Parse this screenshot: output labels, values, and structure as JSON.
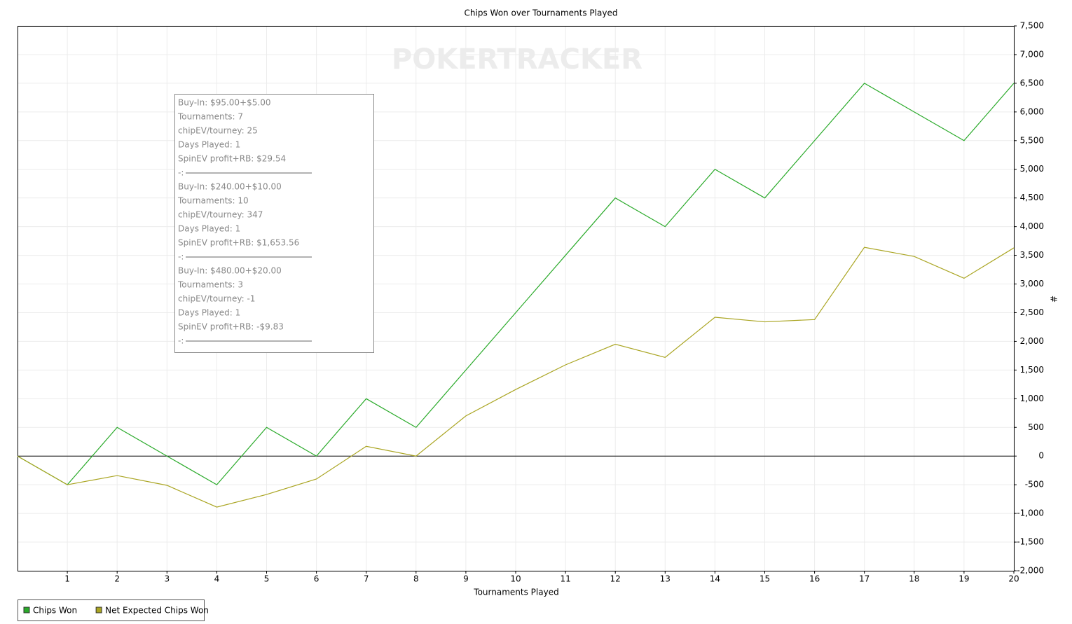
{
  "chart_data": {
    "type": "line",
    "title": "Chips Won over Tournaments Played",
    "x_label": "Tournaments Played",
    "y_label": "#",
    "watermark": "POKERTRACKER",
    "x": [
      0,
      1,
      2,
      3,
      4,
      5,
      6,
      7,
      8,
      9,
      10,
      11,
      12,
      13,
      14,
      15,
      16,
      17,
      18,
      19,
      20
    ],
    "series": [
      {
        "name": "Chips Won",
        "color": "#2aaa2a",
        "values": [
          0,
          -500,
          500,
          0,
          -500,
          500,
          0,
          1000,
          500,
          1500,
          2500,
          3500,
          4500,
          4000,
          5000,
          4500,
          5500,
          6500,
          6000,
          5500,
          6500
        ]
      },
      {
        "name": "Net Expected Chips Won",
        "color": "#aaa522",
        "values": [
          0,
          -500,
          -340,
          -510,
          -890,
          -670,
          -400,
          170,
          0,
          700,
          1160,
          1590,
          1950,
          1720,
          2420,
          2340,
          2380,
          3640,
          3480,
          3100,
          3630
        ]
      }
    ],
    "xlim": [
      0,
      20
    ],
    "xticks": [
      1,
      2,
      3,
      4,
      5,
      6,
      7,
      8,
      9,
      10,
      11,
      12,
      13,
      14,
      15,
      16,
      17,
      18,
      19,
      20
    ],
    "ylim": [
      -2000,
      7500
    ],
    "yticks": [
      {
        "value": -2000,
        "label": "-2,000"
      },
      {
        "value": -1500,
        "label": "-1,500"
      },
      {
        "value": -1000,
        "label": "-1,000"
      },
      -500,
      0,
      500,
      {
        "value": 1000,
        "label": "1,000"
      },
      {
        "value": 1500,
        "label": "1,500"
      },
      {
        "value": 2000,
        "label": "2,000"
      },
      {
        "value": 2500,
        "label": "2,500"
      },
      {
        "value": 3000,
        "label": "3,000"
      },
      {
        "value": 3500,
        "label": "3,500"
      },
      {
        "value": 4000,
        "label": "4,000"
      },
      {
        "value": 4500,
        "label": "4,500"
      },
      {
        "value": 5000,
        "label": "5,000"
      },
      {
        "value": 5500,
        "label": "5,500"
      },
      {
        "value": 6000,
        "label": "6,000"
      },
      {
        "value": 6500,
        "label": "6,500"
      },
      {
        "value": 7000,
        "label": "7,000"
      },
      {
        "value": 7500,
        "label": "7,500"
      }
    ],
    "grid": true,
    "zero_line": true,
    "info_box": [
      "Buy-In: $95.00+$5.00",
      "Tournaments: 7",
      "chipEV/tourney: 25",
      "Days Played: 1",
      "SpinEV profit+RB: $29.54",
      "-:",
      "Buy-In: $240.00+$10.00",
      "Tournaments: 10",
      "chipEV/tourney: 347",
      "Days Played: 1",
      "SpinEV profit+RB: $1,653.56",
      "-:",
      "Buy-In: $480.00+$20.00",
      "Tournaments: 3",
      "chipEV/tourney: -1",
      "Days Played: 1",
      "SpinEV profit+RB: -$9.83",
      "-:"
    ]
  }
}
